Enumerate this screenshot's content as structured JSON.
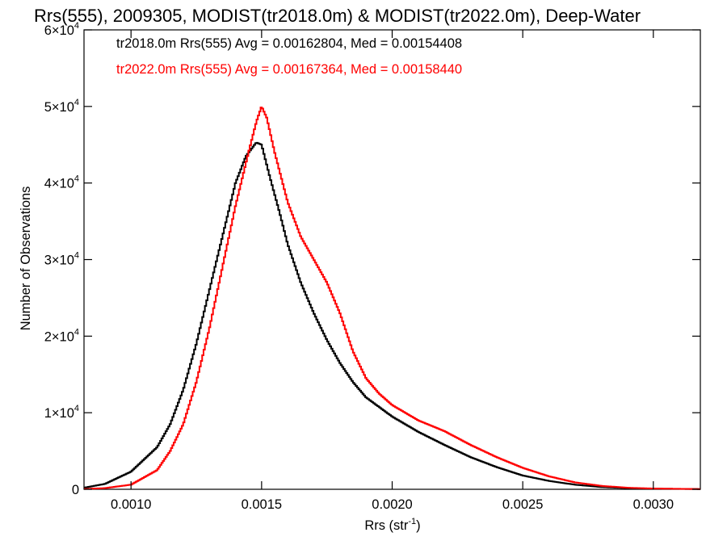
{
  "chart_data": {
    "type": "line",
    "title": "Rrs(555), 2009305, MODIST(tr2018.0m) & MODIST(tr2022.0m), Deep-Water",
    "xlabel": "Rrs (str",
    "xlabel_sup": "-1",
    "xlabel_close": ")",
    "ylabel": "Number of Observations",
    "xlim": [
      0.00082,
      0.00318
    ],
    "ylim": [
      0,
      60000
    ],
    "x_ticks": [
      {
        "value": 0.001,
        "label": "0.0010"
      },
      {
        "value": 0.0015,
        "label": "0.0015"
      },
      {
        "value": 0.002,
        "label": "0.0020"
      },
      {
        "value": 0.0025,
        "label": "0.0025"
      },
      {
        "value": 0.003,
        "label": "0.0030"
      }
    ],
    "y_ticks": [
      {
        "value": 0,
        "mant": "0",
        "exp": ""
      },
      {
        "value": 10000,
        "mant": "1×10",
        "exp": "4"
      },
      {
        "value": 20000,
        "mant": "2×10",
        "exp": "4"
      },
      {
        "value": 30000,
        "mant": "3×10",
        "exp": "4"
      },
      {
        "value": 40000,
        "mant": "4×10",
        "exp": "4"
      },
      {
        "value": 50000,
        "mant": "5×10",
        "exp": "4"
      },
      {
        "value": 60000,
        "mant": "6×10",
        "exp": "4"
      }
    ],
    "grid": false,
    "style": "step",
    "annotations": [
      {
        "text": "tr2018.0m Rrs(555) Avg = 0.00162804, Med = 0.00154408",
        "color": "#000000"
      },
      {
        "text": "tr2022.0m Rrs(555) Avg = 0.00167364, Med = 0.00158440",
        "color": "#ff0000"
      }
    ],
    "series": [
      {
        "color": "#000000",
        "points": [
          [
            0.00082,
            200
          ],
          [
            0.0009,
            700
          ],
          [
            0.001,
            2300
          ],
          [
            0.0011,
            5500
          ],
          [
            0.00115,
            8500
          ],
          [
            0.0012,
            13000
          ],
          [
            0.00125,
            19000
          ],
          [
            0.0013,
            26000
          ],
          [
            0.00135,
            33000
          ],
          [
            0.0014,
            40000
          ],
          [
            0.00144,
            43500
          ],
          [
            0.00148,
            45300
          ],
          [
            0.0015,
            45000
          ],
          [
            0.00153,
            41000
          ],
          [
            0.00157,
            36000
          ],
          [
            0.0016,
            32000
          ],
          [
            0.00165,
            27000
          ],
          [
            0.0017,
            23000
          ],
          [
            0.00175,
            19500
          ],
          [
            0.0018,
            16500
          ],
          [
            0.00185,
            14000
          ],
          [
            0.0019,
            12000
          ],
          [
            0.002,
            9500
          ],
          [
            0.0021,
            7500
          ],
          [
            0.0022,
            5800
          ],
          [
            0.0023,
            4200
          ],
          [
            0.0024,
            2900
          ],
          [
            0.0025,
            1800
          ],
          [
            0.0026,
            1100
          ],
          [
            0.0027,
            600
          ],
          [
            0.0028,
            300
          ],
          [
            0.0029,
            150
          ],
          [
            0.003,
            80
          ],
          [
            0.00318,
            30
          ]
        ]
      },
      {
        "color": "#ff0000",
        "points": [
          [
            0.00082,
            40
          ],
          [
            0.0009,
            150
          ],
          [
            0.001,
            600
          ],
          [
            0.0011,
            2500
          ],
          [
            0.00115,
            5000
          ],
          [
            0.0012,
            8500
          ],
          [
            0.00125,
            14000
          ],
          [
            0.0013,
            21000
          ],
          [
            0.00135,
            29000
          ],
          [
            0.0014,
            37000
          ],
          [
            0.00145,
            44000
          ],
          [
            0.00148,
            48000
          ],
          [
            0.0015,
            50000
          ],
          [
            0.00152,
            48500
          ],
          [
            0.00155,
            44000
          ],
          [
            0.0016,
            37500
          ],
          [
            0.00165,
            33000
          ],
          [
            0.0017,
            30000
          ],
          [
            0.00175,
            27000
          ],
          [
            0.0018,
            23000
          ],
          [
            0.00185,
            18000
          ],
          [
            0.0019,
            14500
          ],
          [
            0.00195,
            12500
          ],
          [
            0.002,
            11000
          ],
          [
            0.0021,
            9000
          ],
          [
            0.0022,
            7600
          ],
          [
            0.0023,
            5800
          ],
          [
            0.0024,
            4200
          ],
          [
            0.0025,
            2800
          ],
          [
            0.0026,
            1700
          ],
          [
            0.0027,
            900
          ],
          [
            0.0028,
            450
          ],
          [
            0.0029,
            200
          ],
          [
            0.003,
            100
          ],
          [
            0.00318,
            30
          ]
        ]
      }
    ]
  }
}
